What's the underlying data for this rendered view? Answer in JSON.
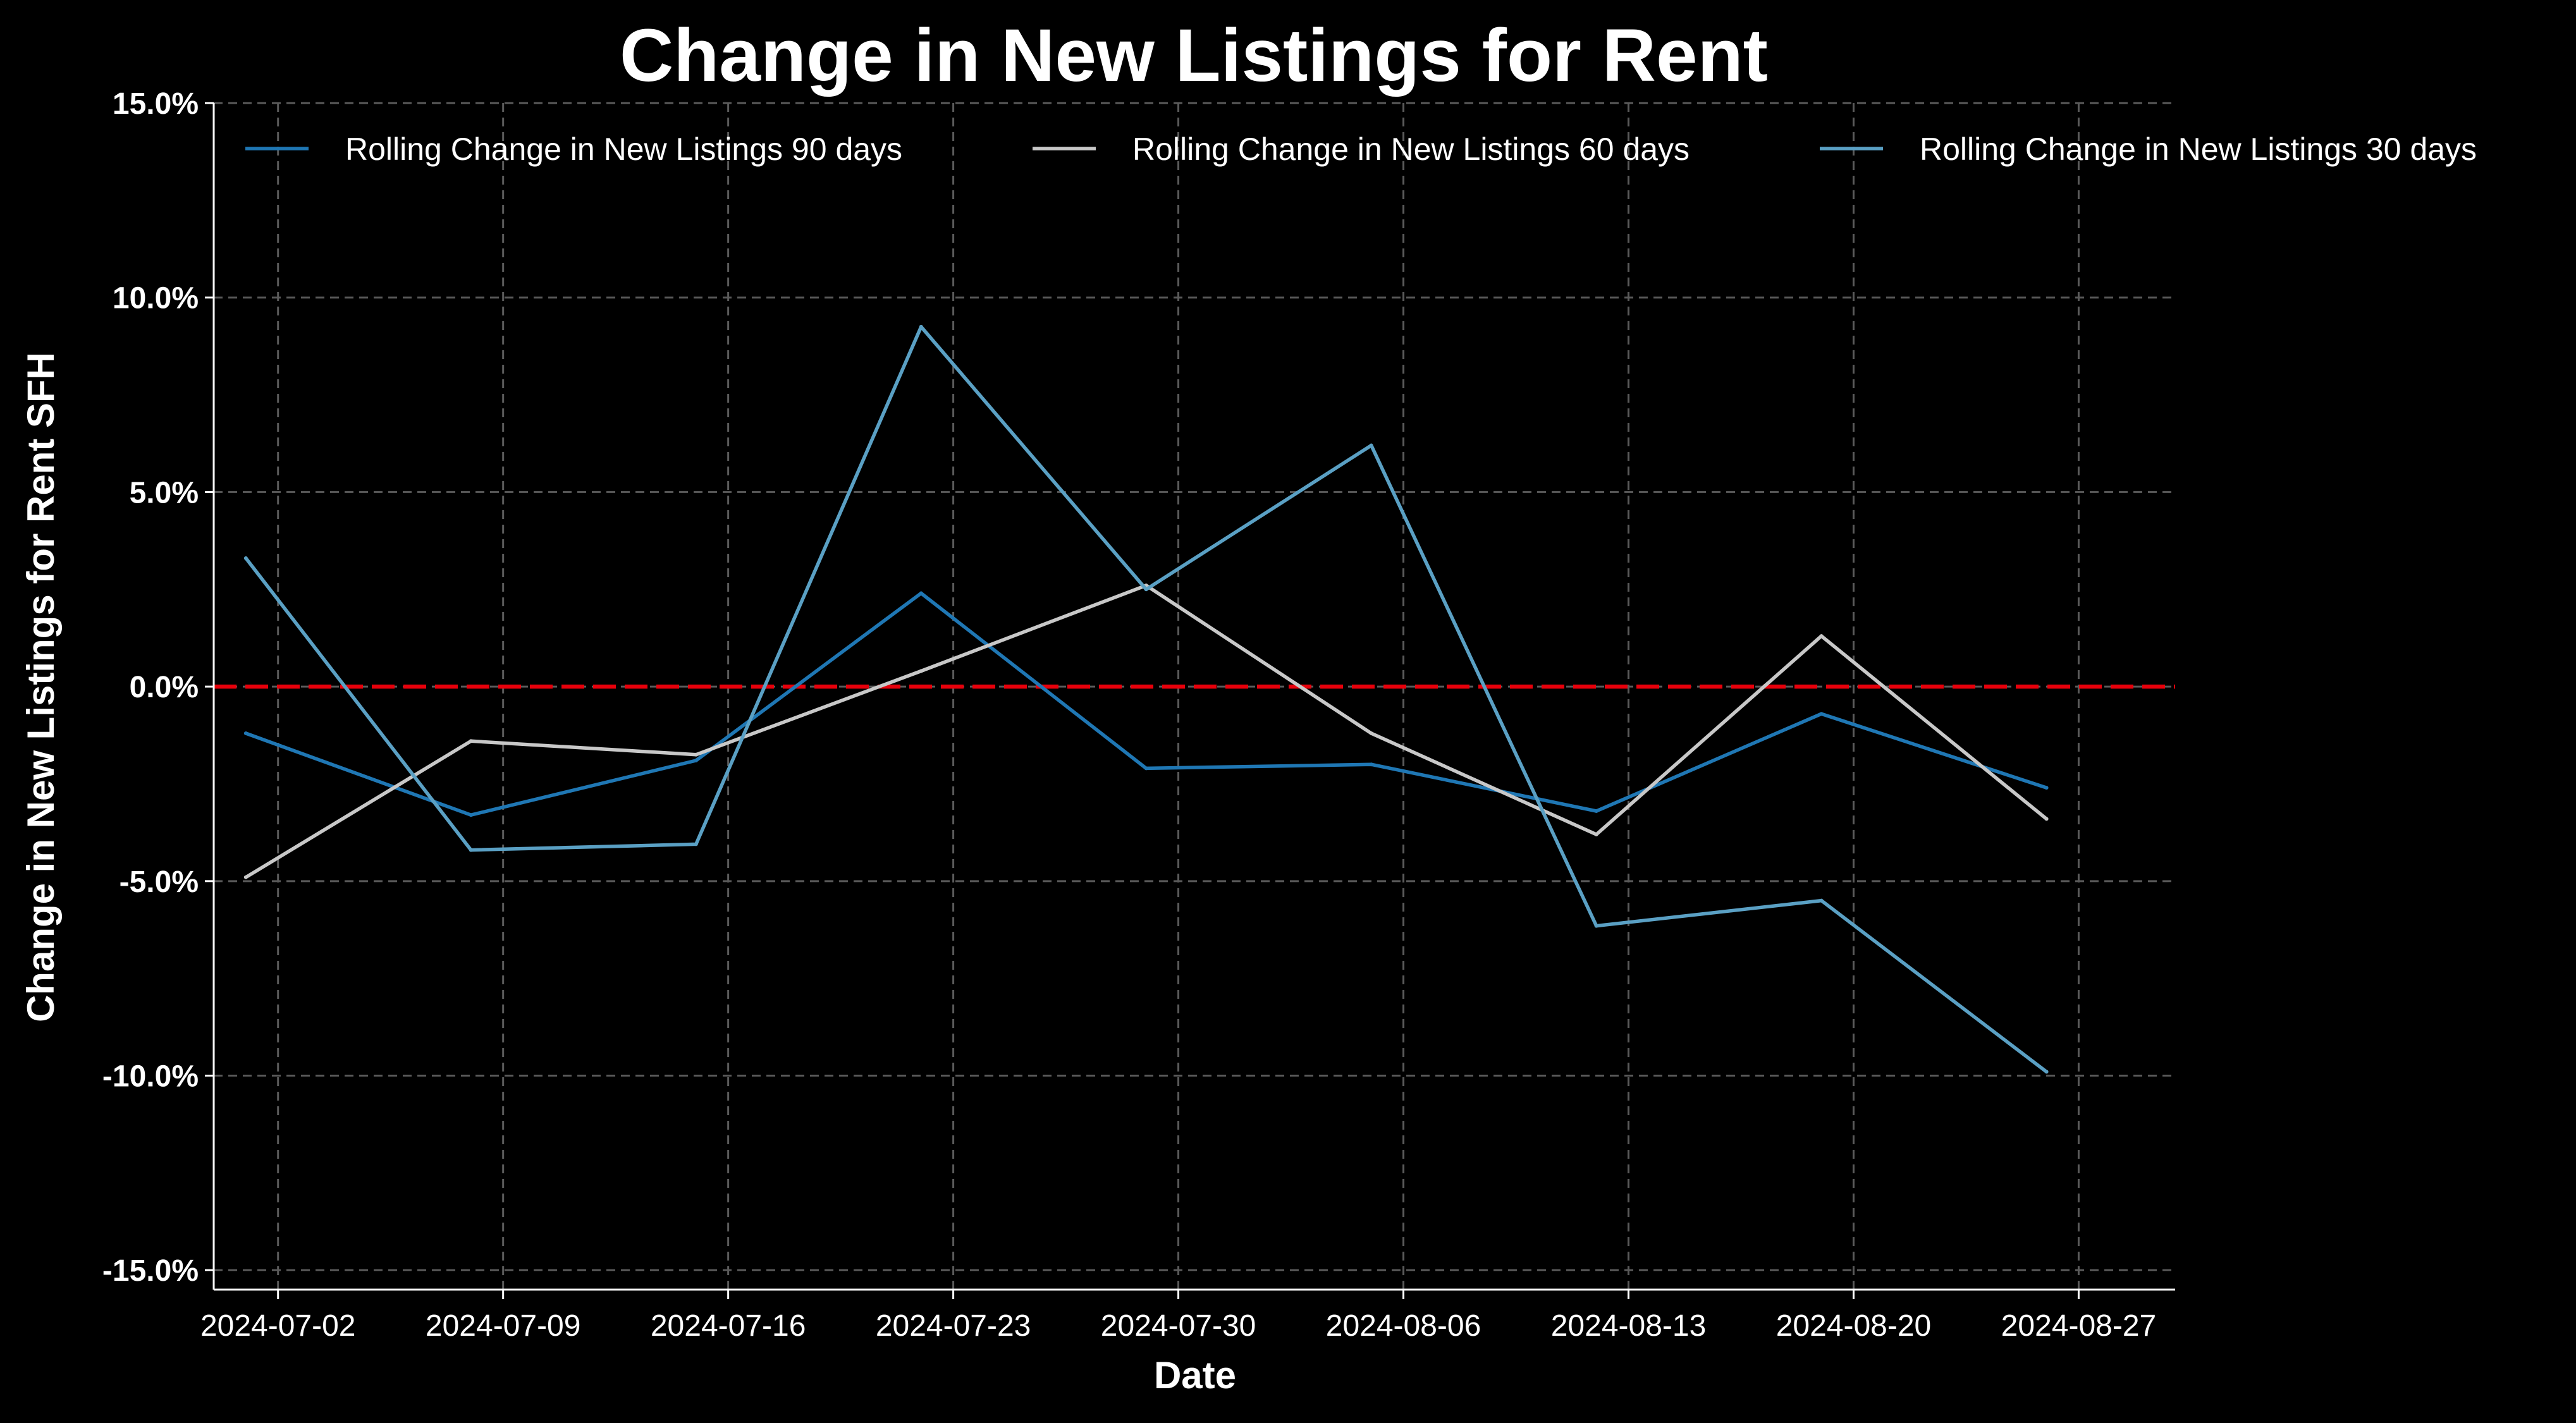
{
  "chart_data": {
    "type": "line",
    "title": "Change in New Listings for Rent",
    "xlabel": "Date",
    "ylabel": "Change in New Listings for Rent SFH",
    "x": [
      "2024-07-01",
      "2024-07-08",
      "2024-07-15",
      "2024-07-22",
      "2024-07-29",
      "2024-08-05",
      "2024-08-12",
      "2024-08-19",
      "2024-08-26"
    ],
    "xticks": [
      "2024-07-02",
      "2024-07-09",
      "2024-07-16",
      "2024-07-23",
      "2024-07-30",
      "2024-08-06",
      "2024-08-13",
      "2024-08-20",
      "2024-08-27"
    ],
    "xlim": [
      "2024-06-30",
      "2024-08-30"
    ],
    "yticks": [
      "15.0%",
      "10.0%",
      "5.0%",
      "0.0%",
      "-5.0%",
      "-10.0%",
      "-15.0%"
    ],
    "ylim": [
      -15.5,
      15.0
    ],
    "y_format": "percent",
    "grid": true,
    "legend_position": "top",
    "series": [
      {
        "name": "Rolling Change in New Listings 90 days",
        "color": "#1f77b4",
        "values": [
          -1.2,
          -3.3,
          -1.9,
          2.4,
          -2.1,
          -2.0,
          -3.2,
          -0.7,
          -2.6
        ]
      },
      {
        "name": "Rolling Change in New Listings 60 days",
        "color": "#c8c8c8",
        "values": [
          -4.9,
          -1.4,
          -1.75,
          0.4,
          2.6,
          -1.2,
          -3.8,
          1.3,
          -3.4
        ]
      },
      {
        "name": "Rolling Change in New Listings 30 days",
        "color": "#5aa0c4",
        "values": [
          3.3,
          -4.2,
          -4.05,
          9.25,
          2.5,
          6.2,
          -6.15,
          -5.5,
          -9.9
        ]
      }
    ],
    "reference_line": {
      "y": 0.0,
      "color": "#e8000b",
      "style": "dashed"
    }
  }
}
